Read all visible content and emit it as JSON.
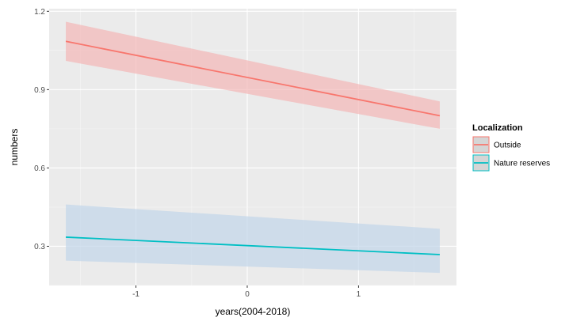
{
  "chart_data": {
    "type": "line",
    "xlabel": "years(2004-2018)",
    "ylabel": "numbers",
    "xlim": [
      -1.78,
      1.88
    ],
    "ylim": [
      0.15,
      1.21
    ],
    "x_ticks": [
      -1,
      0,
      1
    ],
    "x_tick_labels": [
      "-1",
      "0",
      "1"
    ],
    "y_ticks": [
      0.3,
      0.6,
      0.9,
      1.2
    ],
    "y_tick_labels": [
      "0.3",
      "0.6",
      "0.9",
      "1.2"
    ],
    "grid": true,
    "panel_background": "#ebebeb",
    "legend": {
      "title": "Localization",
      "position": "right",
      "entries": [
        "Outside",
        "Nature reserves"
      ]
    },
    "series": [
      {
        "name": "Outside",
        "color": "#f8766d",
        "ribbon_color": "#f4b6b6",
        "x": [
          -1.63,
          1.73
        ],
        "y": [
          1.085,
          0.8
        ],
        "lower": [
          1.01,
          0.75
        ],
        "upper": [
          1.16,
          0.855
        ]
      },
      {
        "name": "Nature reserves",
        "color": "#00bfc4",
        "ribbon_color": "#c2d6ea",
        "x": [
          -1.63,
          1.73
        ],
        "y": [
          0.335,
          0.268
        ],
        "lower": [
          0.245,
          0.198
        ],
        "upper": [
          0.46,
          0.367
        ]
      }
    ]
  }
}
